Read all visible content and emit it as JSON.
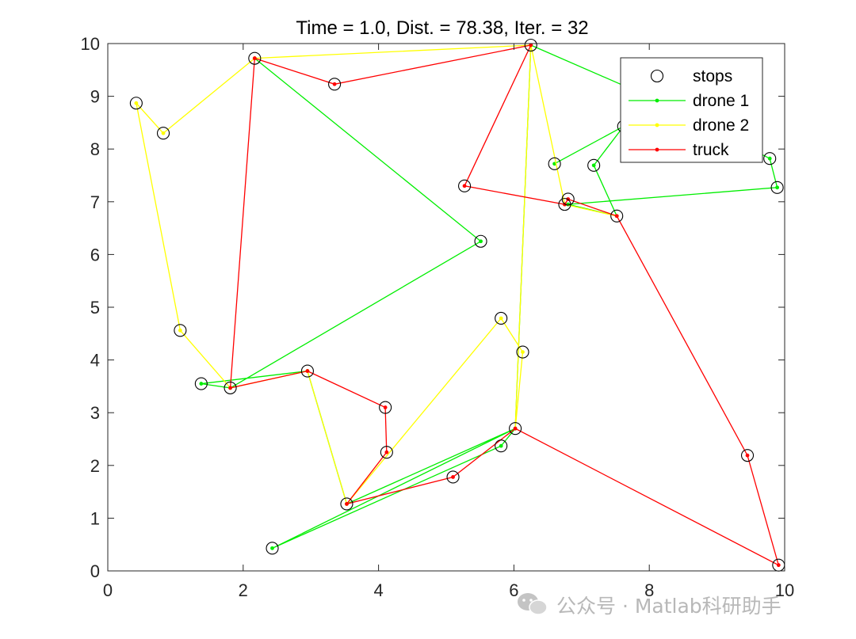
{
  "chart_data": {
    "type": "scatter",
    "title": "Time = 1.0, Dist. = 78.38, Iter. = 32",
    "xlabel": "",
    "ylabel": "",
    "xlim": [
      0,
      10
    ],
    "ylim": [
      0,
      10
    ],
    "xticks": [
      0,
      2,
      4,
      6,
      8,
      10
    ],
    "yticks": [
      0,
      1,
      2,
      3,
      4,
      5,
      6,
      7,
      8,
      9,
      10
    ],
    "legend_position": "top-right",
    "grid": false,
    "stops": {
      "name": "stops",
      "color": "#000000",
      "points": [
        [
          0.42,
          8.87
        ],
        [
          0.82,
          8.3
        ],
        [
          2.17,
          9.72
        ],
        [
          3.35,
          9.23
        ],
        [
          6.25,
          9.97
        ],
        [
          1.07,
          4.56
        ],
        [
          1.38,
          3.55
        ],
        [
          1.81,
          3.47
        ],
        [
          2.95,
          3.79
        ],
        [
          4.1,
          3.1
        ],
        [
          4.12,
          2.25
        ],
        [
          3.53,
          1.27
        ],
        [
          2.43,
          0.43
        ],
        [
          5.1,
          1.78
        ],
        [
          5.81,
          2.37
        ],
        [
          6.02,
          2.7
        ],
        [
          5.81,
          4.79
        ],
        [
          6.13,
          4.15
        ],
        [
          5.51,
          6.25
        ],
        [
          5.27,
          7.3
        ],
        [
          6.6,
          7.72
        ],
        [
          6.75,
          6.95
        ],
        [
          6.8,
          7.05
        ],
        [
          7.18,
          7.69
        ],
        [
          7.52,
          6.73
        ],
        [
          7.62,
          8.43
        ],
        [
          9.78,
          7.82
        ],
        [
          9.89,
          7.27
        ],
        [
          9.45,
          2.19
        ],
        [
          9.91,
          0.11
        ]
      ]
    },
    "series": [
      {
        "name": "drone 1",
        "color": "#00ee00",
        "points": [
          [
            2.17,
            9.72
          ],
          [
            5.51,
            6.25
          ],
          [
            1.81,
            3.47
          ],
          [
            1.38,
            3.55
          ],
          [
            2.95,
            3.79
          ],
          [
            3.53,
            1.27
          ],
          [
            6.02,
            2.7
          ],
          [
            2.43,
            0.43
          ],
          [
            5.81,
            2.37
          ],
          [
            6.02,
            2.7
          ],
          [
            6.25,
            9.97
          ],
          [
            7.95,
            9.02
          ],
          [
            9.78,
            7.82
          ],
          [
            9.89,
            7.27
          ],
          [
            6.8,
            6.95
          ],
          [
            7.52,
            6.73
          ],
          [
            7.18,
            7.69
          ],
          [
            7.62,
            8.43
          ],
          [
            6.6,
            7.72
          ]
        ]
      },
      {
        "name": "drone 2",
        "color": "#ffff00",
        "points": [
          [
            2.17,
            9.72
          ],
          [
            0.82,
            8.3
          ],
          [
            0.42,
            8.87
          ],
          [
            1.07,
            4.56
          ],
          [
            1.81,
            3.47
          ],
          [
            2.95,
            3.79
          ],
          [
            3.53,
            1.27
          ],
          [
            5.81,
            4.79
          ],
          [
            6.13,
            4.15
          ],
          [
            6.02,
            2.7
          ],
          [
            6.25,
            9.97
          ],
          [
            2.17,
            9.72
          ],
          [
            6.25,
            9.97
          ],
          [
            6.75,
            6.95
          ],
          [
            7.52,
            6.73
          ]
        ]
      },
      {
        "name": "truck",
        "color": "#ff0000",
        "points": [
          [
            2.17,
            9.72
          ],
          [
            1.81,
            3.47
          ],
          [
            2.95,
            3.79
          ],
          [
            4.1,
            3.1
          ],
          [
            4.12,
            2.25
          ],
          [
            3.53,
            1.27
          ],
          [
            5.1,
            1.78
          ],
          [
            6.02,
            2.7
          ],
          [
            9.91,
            0.11
          ],
          [
            9.45,
            2.19
          ],
          [
            7.52,
            6.73
          ],
          [
            6.8,
            7.05
          ],
          [
            6.75,
            6.95
          ],
          [
            5.27,
            7.3
          ],
          [
            6.25,
            9.97
          ],
          [
            3.35,
            9.23
          ],
          [
            2.17,
            9.72
          ]
        ]
      }
    ]
  },
  "watermark": {
    "text": "公众号 · Matlab科研助手",
    "icon": "wechat-icon"
  }
}
